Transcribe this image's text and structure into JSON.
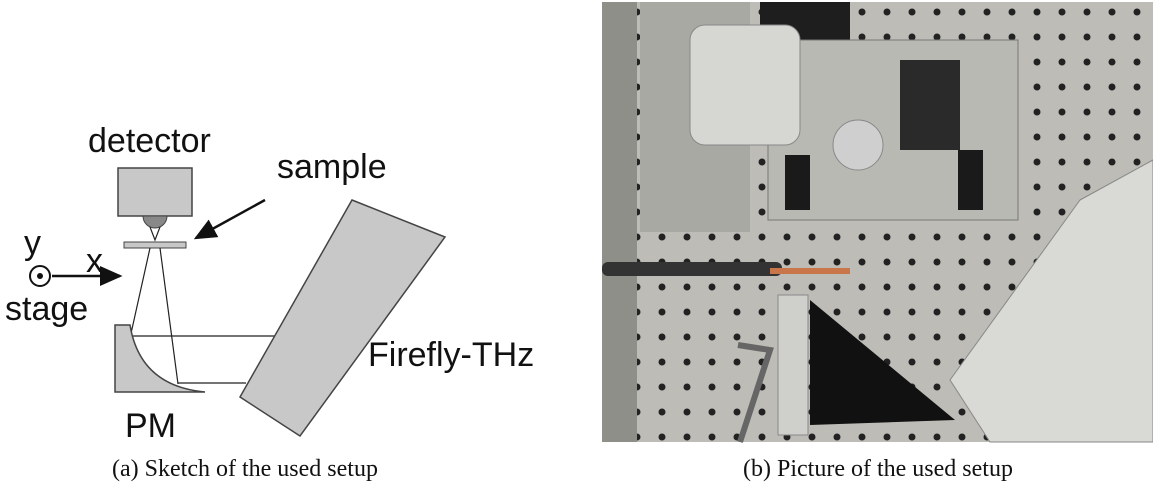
{
  "sketch": {
    "detector": "detector",
    "sample": "sample",
    "y": "y",
    "x": "x",
    "stage": "stage",
    "pm": "PM",
    "firefly": "Firefly-THz",
    "caption": "(a) Sketch of the used setup"
  },
  "photo": {
    "caption": "(b) Picture of the used setup"
  }
}
